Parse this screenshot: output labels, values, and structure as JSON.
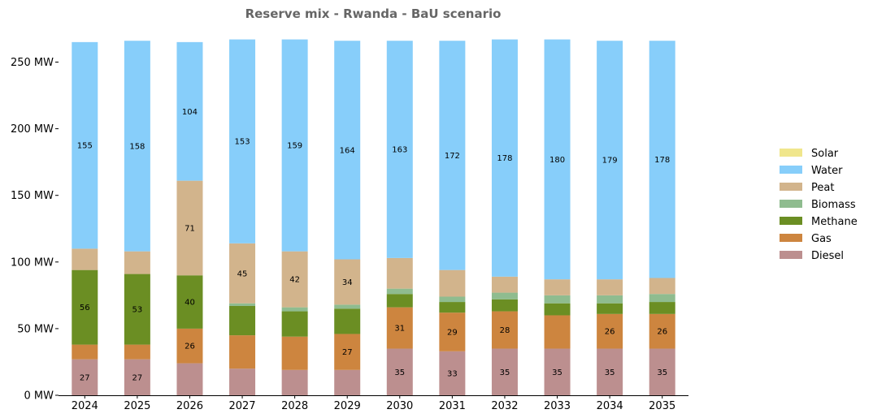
{
  "chart_data": {
    "type": "bar",
    "stacked": true,
    "title": "Reserve mix - Rwanda - BaU scenario",
    "xlabel": "",
    "ylabel": "",
    "ylim": [
      0,
      270
    ],
    "yticks": [
      0,
      50,
      100,
      150,
      200,
      250
    ],
    "ytick_labels": [
      "0 MW",
      "50 MW",
      "100 MW",
      "150 MW",
      "200 MW",
      "250 MW"
    ],
    "grid": false,
    "legend_position": "right",
    "categories": [
      "2024",
      "2025",
      "2026",
      "2027",
      "2028",
      "2029",
      "2030",
      "2031",
      "2032",
      "2033",
      "2034",
      "2035"
    ],
    "series": [
      {
        "name": "Diesel",
        "color": "#bc8f8f",
        "values": [
          27,
          27,
          24,
          20,
          19,
          19,
          35,
          33,
          35,
          35,
          35,
          35
        ],
        "labels": [
          "27",
          "27",
          "",
          "",
          "",
          "",
          "35",
          "33",
          "35",
          "35",
          "35",
          "35"
        ]
      },
      {
        "name": "Gas",
        "color": "#cd853f",
        "values": [
          11,
          11,
          26,
          25,
          25,
          27,
          31,
          29,
          28,
          25,
          26,
          26
        ],
        "labels": [
          "",
          "",
          "26",
          "",
          "",
          "27",
          "31",
          "29",
          "28",
          "",
          "26",
          "26"
        ]
      },
      {
        "name": "Methane",
        "color": "#6b8e23",
        "values": [
          56,
          53,
          40,
          22,
          19,
          19,
          10,
          8,
          9,
          9,
          8,
          9
        ],
        "labels": [
          "56",
          "53",
          "40",
          "",
          "",
          "",
          "",
          "",
          "",
          "",
          "",
          ""
        ]
      },
      {
        "name": "Biomass",
        "color": "#8fbc8f",
        "values": [
          0,
          0,
          0,
          2,
          3,
          3,
          4,
          4,
          5,
          6,
          6,
          6
        ],
        "labels": [
          "",
          "",
          "",
          "",
          "",
          "",
          "",
          "",
          "",
          "",
          "",
          ""
        ]
      },
      {
        "name": "Peat",
        "color": "#d2b48c",
        "values": [
          16,
          17,
          71,
          45,
          42,
          34,
          23,
          20,
          12,
          12,
          12,
          12
        ],
        "labels": [
          "",
          "",
          "71",
          "45",
          "42",
          "34",
          "",
          "",
          "",
          "",
          "",
          ""
        ]
      },
      {
        "name": "Water",
        "color": "#87cefa",
        "values": [
          155,
          158,
          104,
          153,
          159,
          164,
          163,
          172,
          178,
          180,
          179,
          178
        ],
        "labels": [
          "155",
          "158",
          "104",
          "153",
          "159",
          "164",
          "163",
          "172",
          "178",
          "180",
          "179",
          "178"
        ]
      },
      {
        "name": "Solar",
        "color": "#f0e68c",
        "values": [
          0,
          0,
          0,
          0,
          0,
          0,
          0,
          0,
          0,
          0,
          0,
          0
        ],
        "labels": [
          "",
          "",
          "",
          "",
          "",
          "",
          "",
          "",
          "",
          "",
          "",
          ""
        ]
      }
    ],
    "legend_order": [
      "Solar",
      "Water",
      "Peat",
      "Biomass",
      "Methane",
      "Gas",
      "Diesel"
    ]
  }
}
